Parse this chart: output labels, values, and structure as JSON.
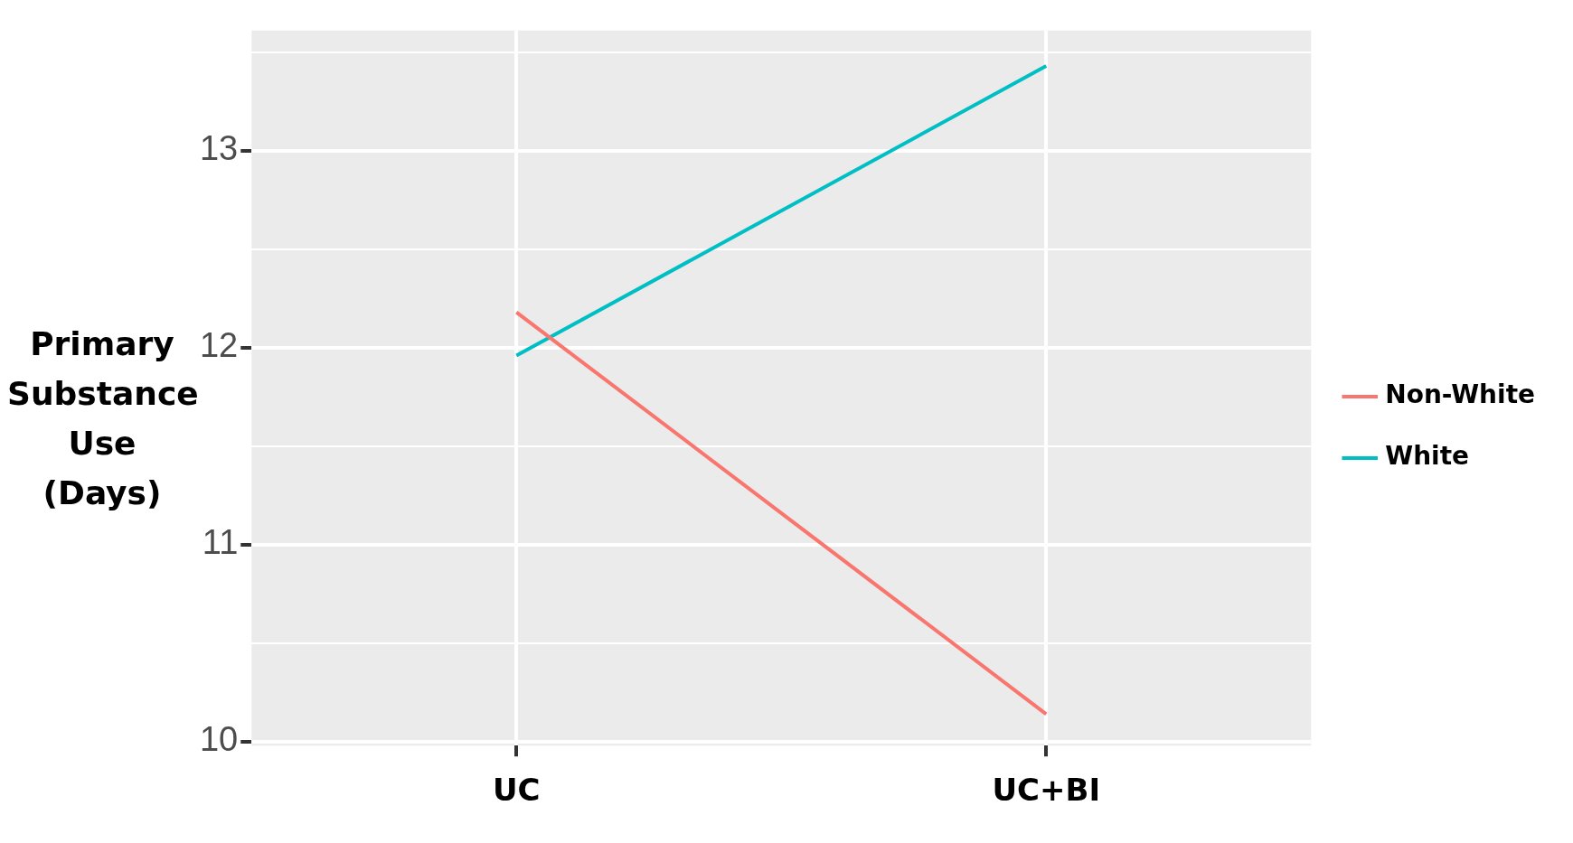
{
  "chart_data": {
    "type": "line",
    "ylabel": "Primary Substance Use (Days)",
    "categories": [
      "UC",
      "UC+BI"
    ],
    "series": [
      {
        "name": "Non-White",
        "color": "#f8766d",
        "values": [
          12.18,
          10.14
        ]
      },
      {
        "name": "White",
        "color": "#00bfc4",
        "values": [
          11.96,
          13.43
        ]
      }
    ],
    "ylim": [
      9.98,
      13.61
    ],
    "yticks": [
      10,
      {
        "value": 10.5,
        "label": null
      },
      11,
      {
        "value": 11.5,
        "label": null
      },
      12,
      {
        "value": 12.5,
        "label": null
      },
      13,
      {
        "value": 13.5,
        "label": null
      }
    ],
    "grid": true,
    "legend": "right",
    "marker": "none",
    "line_style": "solid"
  }
}
